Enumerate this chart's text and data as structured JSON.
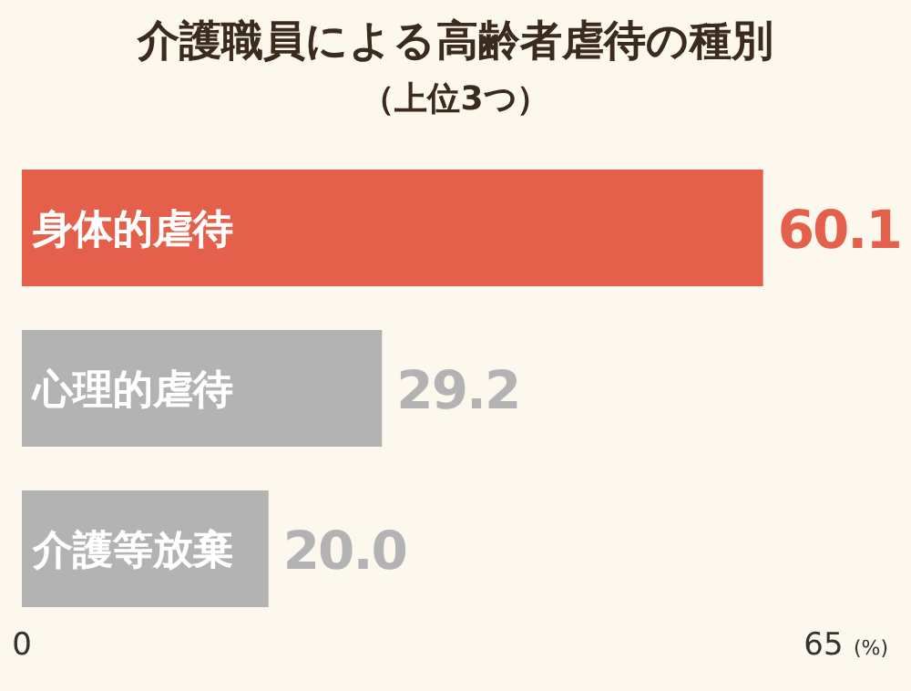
{
  "chart_data": {
    "type": "bar",
    "orientation": "horizontal",
    "title": "介護職員による高齢者虐待の種別",
    "subtitle": "（上位3つ）",
    "xlabel": "(%)",
    "categories": [
      "身体的虐待",
      "心理的虐待",
      "介護等放棄"
    ],
    "values": [
      60.1,
      29.2,
      20.0
    ],
    "colors": [
      "#e4604a",
      "#b3b3b3",
      "#b3b3b3"
    ],
    "value_labels": [
      "60.1",
      "29.2",
      "20.0"
    ],
    "xlim": [
      0,
      65
    ],
    "xticks": [
      0,
      65
    ],
    "grid": false
  }
}
